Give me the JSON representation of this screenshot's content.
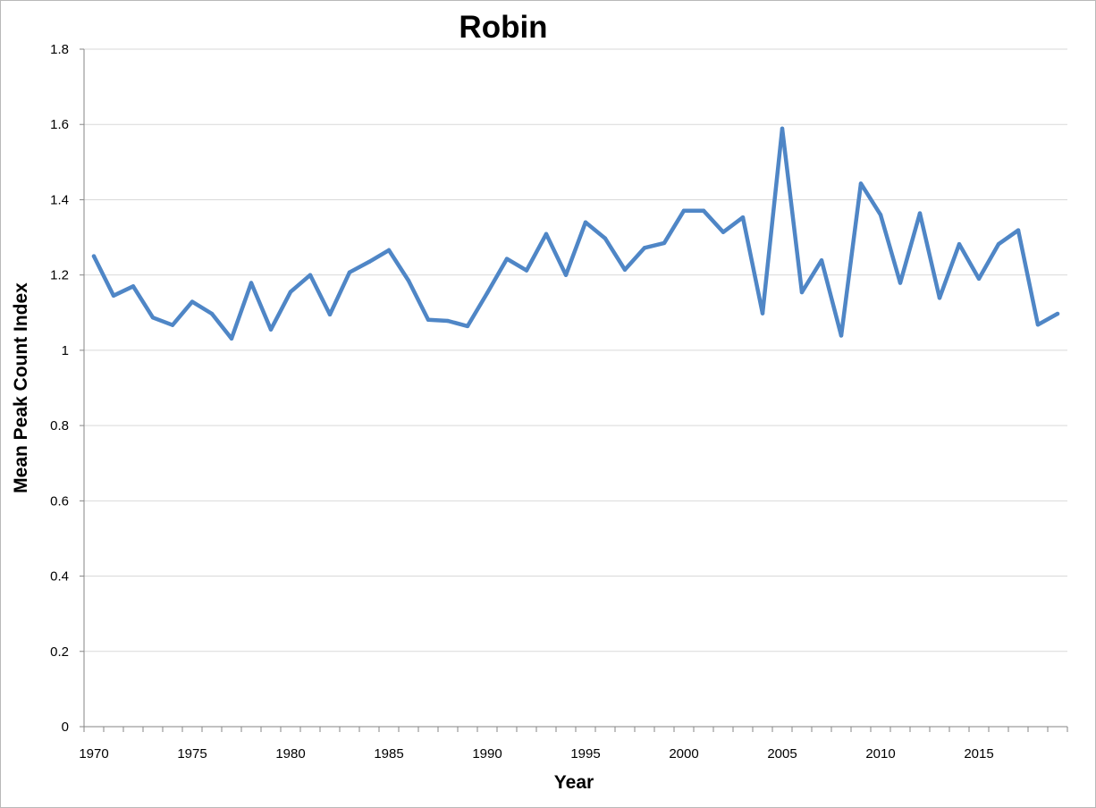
{
  "chart_data": {
    "type": "line",
    "title": "Robin",
    "xlabel": "Year",
    "ylabel": "Mean Peak Count Index",
    "xlim": [
      1969.5,
      2019.5
    ],
    "ylim": [
      0,
      1.8
    ],
    "y_ticks": [
      "0",
      "0.2",
      "0.4",
      "0.6",
      "0.8",
      "1",
      "1.2",
      "1.4",
      "1.6",
      "1.8"
    ],
    "x_tick_labels": [
      "1970",
      "1975",
      "1980",
      "1985",
      "1990",
      "1995",
      "2000",
      "2005",
      "2010",
      "2015"
    ],
    "grid": "horizontal",
    "legend": "none",
    "line_color": "#4f86c6",
    "series": [
      {
        "x": [
          1970,
          1971,
          1972,
          1973,
          1974,
          1975,
          1976,
          1977,
          1978,
          1979,
          1980,
          1981,
          1982,
          1983,
          1984,
          1985,
          1986,
          1987,
          1988,
          1989,
          1990,
          1991,
          1992,
          1993,
          1994,
          1995,
          1996,
          1997,
          1998,
          1999,
          2000,
          2001,
          2002,
          2003,
          2004,
          2005,
          2006,
          2007,
          2008,
          2009,
          2010,
          2011,
          2012,
          2013,
          2014,
          2015,
          2016,
          2017,
          2018,
          2019
        ],
        "values": [
          1.25,
          1.145,
          1.17,
          1.087,
          1.067,
          1.129,
          1.097,
          1.031,
          1.179,
          1.055,
          1.155,
          1.2,
          1.095,
          1.207,
          1.235,
          1.266,
          1.185,
          1.081,
          1.078,
          1.064,
          1.152,
          1.243,
          1.212,
          1.309,
          1.2,
          1.34,
          1.297,
          1.214,
          1.272,
          1.285,
          1.371,
          1.371,
          1.314,
          1.353,
          1.098,
          1.589,
          1.154,
          1.239,
          1.039,
          1.443,
          1.36,
          1.179,
          1.364,
          1.139,
          1.282,
          1.19,
          1.282,
          1.319,
          1.068,
          1.097
        ]
      }
    ]
  }
}
